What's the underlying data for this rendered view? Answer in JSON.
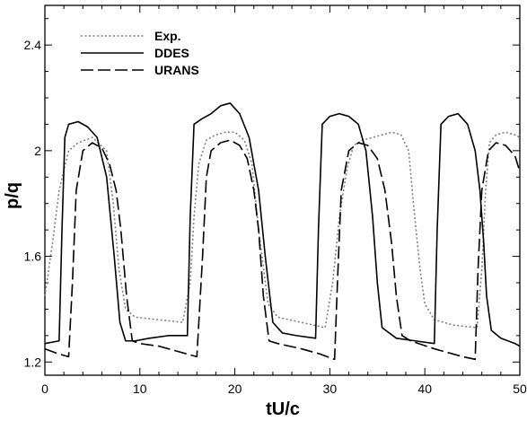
{
  "chart_data": {
    "type": "line",
    "title": "",
    "xlabel": "tU/c",
    "ylabel": "p/q",
    "xlim": [
      0,
      50
    ],
    "ylim": [
      1.15,
      2.55
    ],
    "xticks": [
      0,
      10,
      20,
      30,
      40,
      50
    ],
    "xtick_labels": [
      "0",
      "10",
      "20",
      "30",
      "40",
      "50"
    ],
    "yticks": [
      1.2,
      1.6,
      2.0,
      2.4
    ],
    "ytick_labels": [
      "1.2",
      "1.6",
      "2",
      "2.4"
    ],
    "grid": false,
    "legend_position": "top-left",
    "series": [
      {
        "name": "Exp.",
        "style": "dotted",
        "color": "#7f7f7f",
        "x": [
          0,
          0.8,
          1.5,
          2.5,
          3.5,
          5,
          6.5,
          7.2,
          7.8,
          8.5,
          9.5,
          12,
          14.5,
          15.3,
          15.7,
          16.2,
          17,
          18,
          19,
          20,
          21,
          21.8,
          22.5,
          23.5,
          24.5,
          27,
          29.5,
          30.3,
          31,
          31.8,
          32.5,
          33.5,
          34.5,
          35.5,
          36.5,
          37.5,
          38.3,
          38.8,
          39.5,
          40,
          41,
          43,
          45.5,
          46,
          46.4,
          46.8,
          47.5,
          48.5,
          49.5,
          50
        ],
        "y": [
          1.45,
          1.65,
          1.85,
          2.0,
          2.03,
          2.05,
          2.0,
          1.8,
          1.55,
          1.4,
          1.37,
          1.36,
          1.35,
          1.5,
          1.75,
          1.95,
          2.04,
          2.06,
          2.07,
          2.07,
          2.04,
          1.95,
          1.7,
          1.42,
          1.37,
          1.35,
          1.33,
          1.5,
          1.75,
          1.93,
          2.02,
          2.04,
          2.05,
          2.06,
          2.07,
          2.06,
          2.0,
          1.8,
          1.55,
          1.42,
          1.36,
          1.34,
          1.33,
          1.55,
          1.85,
          2.03,
          2.06,
          2.07,
          2.06,
          2.05
        ]
      },
      {
        "name": "DDES",
        "style": "solid",
        "color": "#000000",
        "x": [
          0,
          1.5,
          1.8,
          2.1,
          2.5,
          3.5,
          4.5,
          5.5,
          6.5,
          7.3,
          7.9,
          8.5,
          9.5,
          11,
          13,
          15,
          15.3,
          15.7,
          16.5,
          17.5,
          18.5,
          19.5,
          20.5,
          21.5,
          22.5,
          23.2,
          24,
          25,
          26.5,
          28.5,
          28.8,
          29.2,
          30,
          31,
          32,
          33,
          33.8,
          34.5,
          35,
          35.5,
          37,
          39,
          41,
          41.3,
          41.7,
          42.5,
          43.5,
          44.5,
          45.3,
          45.8,
          46.2,
          46.5,
          47,
          48,
          49.5,
          50
        ],
        "y": [
          1.27,
          1.28,
          1.7,
          2.05,
          2.1,
          2.11,
          2.09,
          2.05,
          1.9,
          1.6,
          1.35,
          1.28,
          1.28,
          1.29,
          1.3,
          1.3,
          1.75,
          2.1,
          2.12,
          2.14,
          2.17,
          2.18,
          2.14,
          2.05,
          1.85,
          1.6,
          1.35,
          1.31,
          1.3,
          1.29,
          1.7,
          2.1,
          2.13,
          2.14,
          2.13,
          2.1,
          2.0,
          1.75,
          1.5,
          1.33,
          1.29,
          1.28,
          1.27,
          1.7,
          2.1,
          2.13,
          2.14,
          2.1,
          2.0,
          1.85,
          1.65,
          1.45,
          1.32,
          1.29,
          1.27,
          1.26
        ]
      },
      {
        "name": "URANS",
        "style": "dashed",
        "color": "#000000",
        "x": [
          0,
          1.5,
          2.5,
          2.9,
          3.3,
          4,
          5,
          6,
          6.8,
          7.5,
          8,
          8.6,
          9.2,
          10,
          12,
          14,
          16,
          16.6,
          17,
          17.5,
          18.5,
          19.5,
          20.5,
          21.3,
          22,
          22.5,
          23,
          23.6,
          24.5,
          27,
          29,
          30.5,
          30.8,
          31.2,
          32,
          33,
          34,
          35,
          35.8,
          36.5,
          37,
          37.6,
          38.5,
          41,
          44,
          45.3,
          45.6,
          46,
          46.7,
          47.5,
          48.5,
          49.5,
          50
        ],
        "y": [
          1.25,
          1.23,
          1.22,
          1.5,
          1.85,
          2.0,
          2.03,
          2.01,
          1.95,
          1.85,
          1.7,
          1.45,
          1.28,
          1.27,
          1.26,
          1.24,
          1.22,
          1.6,
          1.9,
          2.0,
          2.03,
          2.04,
          2.02,
          1.97,
          1.85,
          1.7,
          1.45,
          1.28,
          1.27,
          1.25,
          1.23,
          1.21,
          1.5,
          1.85,
          2.0,
          2.03,
          2.02,
          1.97,
          1.85,
          1.65,
          1.45,
          1.3,
          1.28,
          1.25,
          1.22,
          1.21,
          1.55,
          1.85,
          2.0,
          2.03,
          2.02,
          1.98,
          1.92
        ]
      }
    ]
  }
}
